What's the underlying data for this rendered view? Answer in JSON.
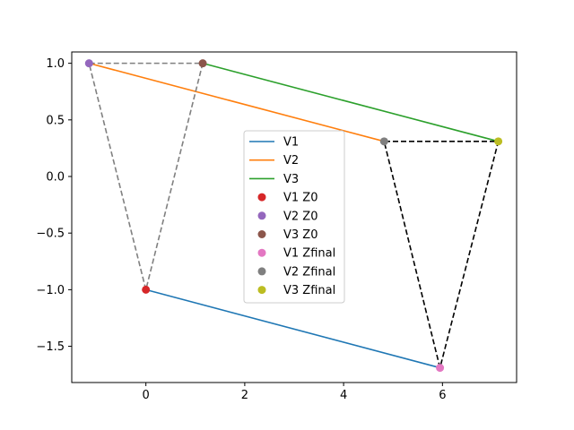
{
  "chart_data": {
    "type": "line",
    "xlim": [
      -1.5,
      7.5
    ],
    "ylim": [
      -1.82,
      1.1
    ],
    "xticks": [
      0,
      2,
      4,
      6
    ],
    "yticks": [
      -1.5,
      -1.0,
      -0.5,
      0.0,
      0.5,
      1.0
    ],
    "xtick_labels": [
      "0",
      "2",
      "4",
      "6"
    ],
    "ytick_labels": [
      "−1.5",
      "−1.0",
      "−0.5",
      "0.0",
      "0.5",
      "1.0"
    ],
    "grid": false,
    "legend_position": "center",
    "lines": [
      {
        "name": "V1",
        "color": "#1f77b4",
        "x": [
          0.0,
          5.95
        ],
        "y": [
          -1.0,
          -1.69
        ]
      },
      {
        "name": "V2",
        "color": "#ff7f0e",
        "x": [
          -1.15,
          4.82
        ],
        "y": [
          1.0,
          0.31
        ]
      },
      {
        "name": "V3",
        "color": "#2ca02c",
        "x": [
          1.15,
          7.13
        ],
        "y": [
          1.0,
          0.31
        ]
      }
    ],
    "dashed_triangles": [
      {
        "color": "#808080",
        "x": [
          0.0,
          -1.15,
          1.15,
          0.0
        ],
        "y": [
          -1.0,
          1.0,
          1.0,
          -1.0
        ]
      },
      {
        "color": "#000000",
        "x": [
          5.95,
          4.82,
          7.13,
          5.95
        ],
        "y": [
          -1.69,
          0.31,
          0.31,
          -1.69
        ]
      }
    ],
    "points": [
      {
        "name": "V1 Z0",
        "color": "#d62728",
        "x": 0.0,
        "y": -1.0
      },
      {
        "name": "V2 Z0",
        "color": "#9467bd",
        "x": -1.15,
        "y": 1.0
      },
      {
        "name": "V3 Z0",
        "color": "#8c564b",
        "x": 1.15,
        "y": 1.0
      },
      {
        "name": "V1 Zfinal",
        "color": "#e377c2",
        "x": 5.95,
        "y": -1.69
      },
      {
        "name": "V2 Zfinal",
        "color": "#7f7f7f",
        "x": 4.82,
        "y": 0.31
      },
      {
        "name": "V3 Zfinal",
        "color": "#bcbd22",
        "x": 7.13,
        "y": 0.31
      }
    ]
  }
}
